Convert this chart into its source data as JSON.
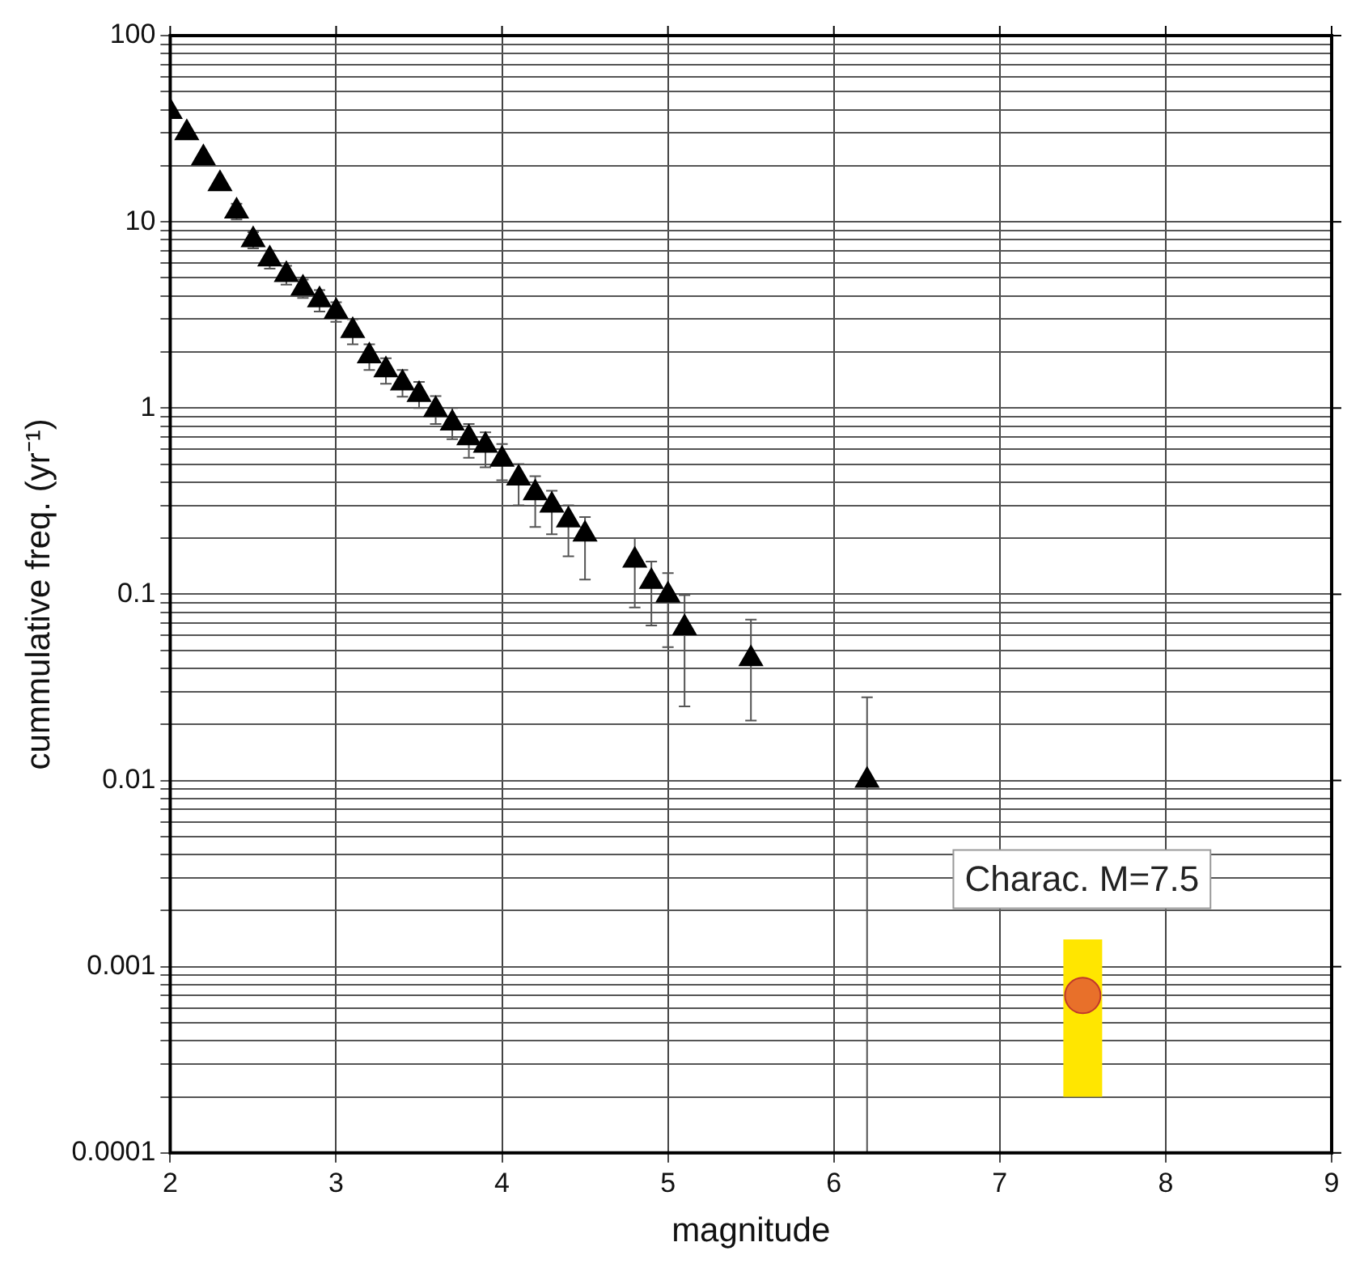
{
  "chart_data": {
    "type": "scatter",
    "xlabel": "magnitude",
    "ylabel": "cummulative freq. (yr⁻¹)",
    "log": "y",
    "grid": true,
    "xlim": [
      2,
      9
    ],
    "xticks": [
      2,
      3,
      4,
      5,
      6,
      7,
      8,
      9
    ],
    "ylim": [
      0.0001,
      100
    ],
    "yticks": [
      0.0001,
      0.001,
      0.01,
      0.1,
      1,
      10,
      100
    ],
    "series": [
      {
        "color": "#000000",
        "marker": "triangle",
        "x": [
          2.0,
          2.1,
          2.2,
          2.3,
          2.4,
          2.5,
          2.6,
          2.7,
          2.8,
          2.9,
          3.0,
          3.1,
          3.2,
          3.3,
          3.4,
          3.5,
          3.6,
          3.7,
          3.8,
          3.9,
          4.0,
          4.1,
          4.2,
          4.3,
          4.4,
          4.5,
          4.8,
          4.9,
          5.0,
          5.1,
          5.5,
          6.2
        ],
        "values": [
          39,
          30,
          22,
          16,
          11.4,
          8,
          6.3,
          5.2,
          4.4,
          3.8,
          3.3,
          2.6,
          1.9,
          1.6,
          1.36,
          1.18,
          0.98,
          0.83,
          0.69,
          0.63,
          0.53,
          0.42,
          0.35,
          0.3,
          0.25,
          0.21,
          0.152,
          0.117,
          0.099,
          0.066,
          0.045,
          0.01
        ],
        "errors": [
          null,
          null,
          null,
          null,
          [
            10.3,
            12.5
          ],
          [
            7.2,
            8.8
          ],
          [
            5.6,
            7
          ],
          [
            4.6,
            5.8
          ],
          [
            3.9,
            4.9
          ],
          [
            3.3,
            4.3
          ],
          [
            2.9,
            3.7
          ],
          [
            2.2,
            3
          ],
          [
            1.6,
            2.2
          ],
          [
            1.35,
            1.85
          ],
          [
            1.15,
            1.6
          ],
          [
            1.0,
            1.38
          ],
          [
            0.82,
            1.16
          ],
          [
            0.68,
            1.0
          ],
          [
            0.54,
            0.82
          ],
          [
            0.48,
            0.74
          ],
          [
            0.41,
            0.64
          ],
          [
            0.3,
            0.5
          ],
          [
            0.23,
            0.43
          ],
          [
            0.21,
            0.36
          ],
          [
            0.16,
            0.3
          ],
          [
            0.12,
            0.26
          ],
          [
            0.085,
            0.2
          ],
          [
            0.068,
            0.15
          ],
          [
            0.052,
            0.13
          ],
          [
            0.025,
            0.099
          ],
          [
            0.021,
            0.073
          ],
          [
            0.0001,
            0.028
          ]
        ]
      },
      {
        "color": "#e8702a",
        "marker": "circle",
        "x": [
          7.5
        ],
        "values": [
          0.0007
        ],
        "errors": [
          [
            0.0002,
            0.0014
          ]
        ]
      }
    ],
    "annotations": [
      "Charac. M=7.5"
    ],
    "legend": false
  }
}
